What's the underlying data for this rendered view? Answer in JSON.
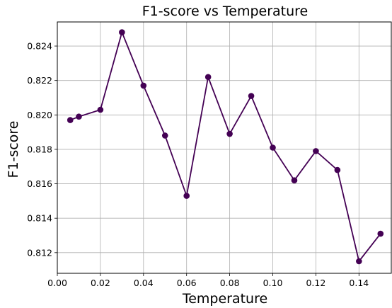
{
  "chart_data": {
    "type": "line",
    "title": "F1-score vs Temperature",
    "xlabel": "Temperature",
    "ylabel": "F1-score",
    "xlim": [
      0.0,
      0.155
    ],
    "ylim": [
      0.8108,
      0.8254
    ],
    "xticks": [
      0.0,
      0.02,
      0.04,
      0.06,
      0.08,
      0.1,
      0.12,
      0.14
    ],
    "xtick_labels": [
      "0.00",
      "0.02",
      "0.04",
      "0.06",
      "0.08",
      "0.10",
      "0.12",
      "0.14"
    ],
    "yticks": [
      0.812,
      0.814,
      0.816,
      0.818,
      0.82,
      0.822,
      0.824
    ],
    "ytick_labels": [
      "0.812",
      "0.814",
      "0.816",
      "0.818",
      "0.820",
      "0.822",
      "0.824"
    ],
    "grid": true,
    "color": "#440154",
    "x": [
      0.006,
      0.01,
      0.02,
      0.03,
      0.04,
      0.05,
      0.06,
      0.07,
      0.08,
      0.09,
      0.1,
      0.11,
      0.12,
      0.13,
      0.14,
      0.15
    ],
    "y": [
      0.8197,
      0.8199,
      0.8203,
      0.8248,
      0.8217,
      0.8188,
      0.8153,
      0.8222,
      0.8189,
      0.8211,
      0.8181,
      0.8162,
      0.8179,
      0.8168,
      0.8115,
      0.8131
    ]
  }
}
